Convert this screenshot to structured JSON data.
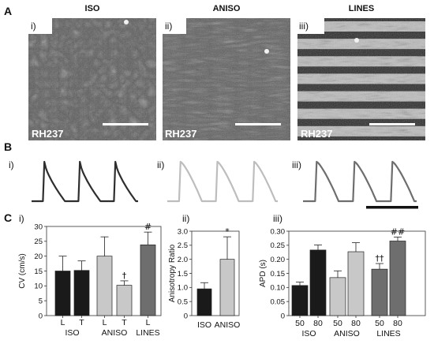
{
  "panels": {
    "A": {
      "letter": "A",
      "labels": [
        "i)",
        "ii)",
        "iii)"
      ],
      "titles": [
        "ISO",
        "ANISO",
        "LINES"
      ],
      "stain": "RH237"
    },
    "B": {
      "letter": "B",
      "labels": [
        "i)",
        "ii)",
        "iii)"
      ],
      "trace_colors": [
        "#2e2e2e",
        "#bdbdbd",
        "#6e6e6e"
      ]
    },
    "C": {
      "letter": "C",
      "labels": [
        "i)",
        "ii)",
        "iii)"
      ]
    }
  },
  "chart_data": [
    {
      "type": "bar",
      "ylabel": "CV (cm/s)",
      "ylim": [
        0,
        30
      ],
      "yticks": [
        "0",
        "5",
        "10",
        "15",
        "20",
        "25",
        "30"
      ],
      "groups": [
        "ISO",
        "ANISO",
        "LINES"
      ],
      "bars": [
        {
          "group": "ISO",
          "label": "L",
          "value": 15.0,
          "error": 5.0,
          "color": "#1a1a1a",
          "sig": ""
        },
        {
          "group": "ISO",
          "label": "T",
          "value": 15.2,
          "error": 3.2,
          "color": "#1a1a1a",
          "sig": ""
        },
        {
          "group": "ANISO",
          "label": "L",
          "value": 20.0,
          "error": 6.5,
          "color": "#c8c8c8",
          "sig": ""
        },
        {
          "group": "ANISO",
          "label": "T",
          "value": 10.2,
          "error": 1.5,
          "color": "#c8c8c8",
          "sig": "†"
        },
        {
          "group": "LINES",
          "label": "L",
          "value": 23.8,
          "error": 4.3,
          "color": "#6e6e6e",
          "sig": "#"
        }
      ]
    },
    {
      "type": "bar",
      "ylabel": "Anisotropy Ratio",
      "ylim": [
        0,
        3.0
      ],
      "yticks": [
        "0",
        "0.5",
        "1.0",
        "1.5",
        "2.0",
        "2.5",
        "3.0"
      ],
      "groups": [
        "ISO",
        "ANISO"
      ],
      "bars": [
        {
          "group": "ISO",
          "label": "ISO",
          "value": 0.95,
          "error": 0.22,
          "color": "#1a1a1a",
          "sig": ""
        },
        {
          "group": "ANISO",
          "label": "ANISO",
          "value": 2.0,
          "error": 0.8,
          "color": "#c8c8c8",
          "sig": "*"
        }
      ]
    },
    {
      "type": "bar",
      "ylabel": "APD (s)",
      "ylim": [
        0,
        0.3
      ],
      "yticks": [
        "0",
        "0.05",
        "0.10",
        "0.15",
        "0.20",
        "0.25",
        "0.30"
      ],
      "groups": [
        "ISO",
        "ANISO",
        "LINES"
      ],
      "bars": [
        {
          "group": "ISO",
          "label": "50",
          "value": 0.107,
          "error": 0.012,
          "color": "#1a1a1a",
          "sig": ""
        },
        {
          "group": "ISO",
          "label": "80",
          "value": 0.233,
          "error": 0.018,
          "color": "#1a1a1a",
          "sig": ""
        },
        {
          "group": "ANISO",
          "label": "50",
          "value": 0.135,
          "error": 0.024,
          "color": "#c8c8c8",
          "sig": ""
        },
        {
          "group": "ANISO",
          "label": "80",
          "value": 0.227,
          "error": 0.032,
          "color": "#c8c8c8",
          "sig": ""
        },
        {
          "group": "LINES",
          "label": "50",
          "value": 0.165,
          "error": 0.02,
          "color": "#6e6e6e",
          "sig": "††"
        },
        {
          "group": "LINES",
          "label": "80",
          "value": 0.265,
          "error": 0.014,
          "color": "#6e6e6e",
          "sig": "##"
        }
      ]
    }
  ]
}
